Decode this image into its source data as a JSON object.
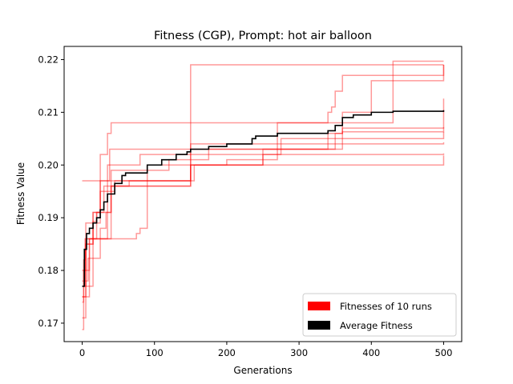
{
  "chart_data": {
    "type": "line",
    "title": "Fitness (CGP), Prompt: hot air balloon",
    "xlabel": "Generations",
    "ylabel": "Fitness Value",
    "xlim": [
      -25,
      525
    ],
    "ylim": [
      0.1665,
      0.2225
    ],
    "xticks": [
      0,
      100,
      200,
      300,
      400,
      500
    ],
    "yticks": [
      0.17,
      0.18,
      0.19,
      0.2,
      0.21,
      0.22
    ],
    "ytick_labels": [
      "0.17",
      "0.18",
      "0.19",
      "0.20",
      "0.21",
      "0.22"
    ],
    "grid": false,
    "legend": {
      "placement": "lower-right",
      "entries": [
        {
          "label": "Fitnesses of 10 runs",
          "color": "#ff0000"
        },
        {
          "label": "Average Fitness",
          "color": "#000000"
        }
      ]
    },
    "runs_color": "#ff0000",
    "runs_opacity": 0.4,
    "average_color": "#000000",
    "runs": [
      {
        "x": [
          0,
          2,
          5,
          30,
          40,
          150,
          500
        ],
        "y": [
          0.1688,
          0.18,
          0.186,
          0.186,
          0.196,
          0.219,
          0.219
        ]
      },
      {
        "x": [
          0,
          5,
          10,
          25,
          35,
          40,
          150,
          180,
          430,
          500
        ],
        "y": [
          0.171,
          0.189,
          0.189,
          0.202,
          0.206,
          0.208,
          0.208,
          0.208,
          0.2197,
          0.2197
        ]
      },
      {
        "x": [
          0,
          2,
          4,
          20,
          35,
          45,
          80,
          275,
          500
        ],
        "y": [
          0.174,
          0.182,
          0.186,
          0.186,
          0.2,
          0.2,
          0.202,
          0.205,
          0.2063
        ]
      },
      {
        "x": [
          0,
          30,
          38,
          150,
          500
        ],
        "y": [
          0.197,
          0.197,
          0.203,
          0.204,
          0.2043
        ]
      },
      {
        "x": [
          0,
          8,
          20,
          25,
          33,
          40,
          45,
          90,
          150,
          230,
          360,
          500
        ],
        "y": [
          0.178,
          0.1823,
          0.1823,
          0.188,
          0.191,
          0.196,
          0.197,
          0.197,
          0.203,
          0.203,
          0.2063,
          0.2072
        ]
      },
      {
        "x": [
          0,
          5,
          15,
          25,
          45,
          65,
          90,
          145,
          250,
          500
        ],
        "y": [
          0.175,
          0.185,
          0.191,
          0.195,
          0.196,
          0.197,
          0.2,
          0.2,
          0.202,
          0.2022
        ]
      },
      {
        "x": [
          0,
          10,
          20,
          30,
          45,
          70,
          75,
          80,
          90,
          150,
          370,
          500
        ],
        "y": [
          0.175,
          0.186,
          0.186,
          0.186,
          0.186,
          0.186,
          0.187,
          0.188,
          0.197,
          0.2,
          0.2,
          0.2018
        ]
      },
      {
        "x": [
          0,
          10,
          20,
          40,
          95,
          150,
          250,
          350,
          360,
          500
        ],
        "y": [
          0.18,
          0.186,
          0.191,
          0.196,
          0.196,
          0.2,
          0.203,
          0.206,
          0.207,
          0.2126
        ]
      },
      {
        "x": [
          0,
          15,
          20,
          30,
          40,
          120,
          175,
          340,
          345,
          360,
          400,
          500
        ],
        "y": [
          0.177,
          0.1893,
          0.191,
          0.196,
          0.199,
          0.201,
          0.203,
          0.206,
          0.206,
          0.21,
          0.216,
          0.219
        ]
      },
      {
        "x": [
          0,
          5,
          15,
          25,
          40,
          60,
          120,
          145,
          155,
          200,
          270,
          300,
          340,
          345,
          350,
          360,
          500
        ],
        "y": [
          0.177,
          0.185,
          0.191,
          0.197,
          0.197,
          0.197,
          0.197,
          0.197,
          0.2,
          0.201,
          0.208,
          0.208,
          0.21,
          0.211,
          0.214,
          0.217,
          0.219
        ]
      }
    ],
    "average": {
      "x": [
        0,
        3,
        6,
        10,
        15,
        20,
        25,
        30,
        35,
        45,
        55,
        60,
        90,
        110,
        130,
        145,
        150,
        175,
        200,
        235,
        240,
        270,
        300,
        340,
        350,
        360,
        375,
        400,
        430,
        500
      ],
      "y": [
        0.177,
        0.184,
        0.187,
        0.188,
        0.189,
        0.19,
        0.1915,
        0.193,
        0.1945,
        0.1965,
        0.198,
        0.1985,
        0.2,
        0.201,
        0.202,
        0.2025,
        0.203,
        0.2035,
        0.204,
        0.205,
        0.2055,
        0.206,
        0.206,
        0.2065,
        0.2075,
        0.209,
        0.2095,
        0.21,
        0.2102,
        0.2104
      ]
    }
  }
}
